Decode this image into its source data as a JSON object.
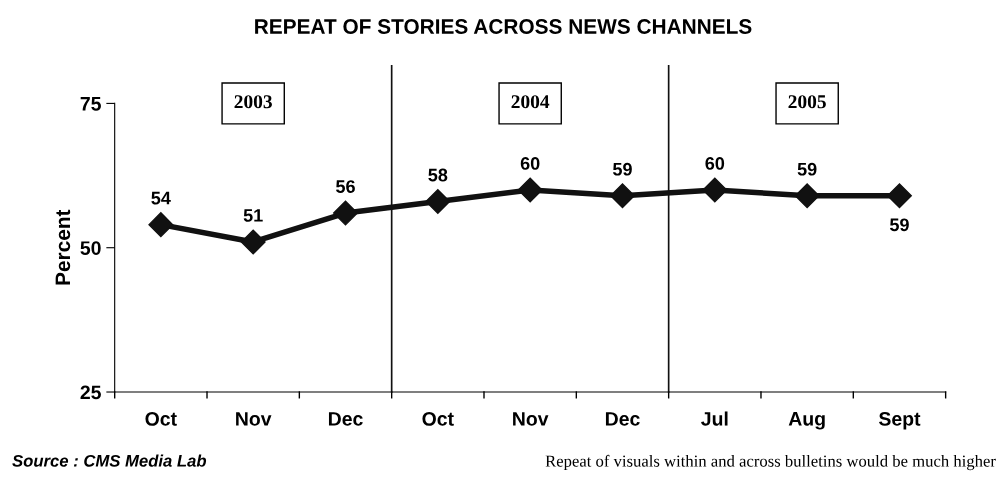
{
  "chart_data": {
    "type": "line",
    "title": "REPEAT OF STORIES ACROSS NEWS CHANNELS",
    "ylabel": "Percent",
    "categories": [
      "Oct",
      "Nov",
      "Dec",
      "Oct",
      "Nov",
      "Dec",
      "Jul",
      "Aug",
      "Sept"
    ],
    "values": [
      54,
      51,
      56,
      58,
      60,
      59,
      60,
      59,
      59
    ],
    "color": "#111111",
    "marker": "diamond",
    "line_style": "solid",
    "data_labels": true,
    "grid": false,
    "ylim": [
      25,
      75
    ],
    "yticks": [
      25,
      50,
      75
    ],
    "annotations": [
      "2003",
      "2004",
      "2005",
      "Source : CMS Media Lab",
      "Repeat of visuals within and across bulletins would be much higher"
    ]
  }
}
